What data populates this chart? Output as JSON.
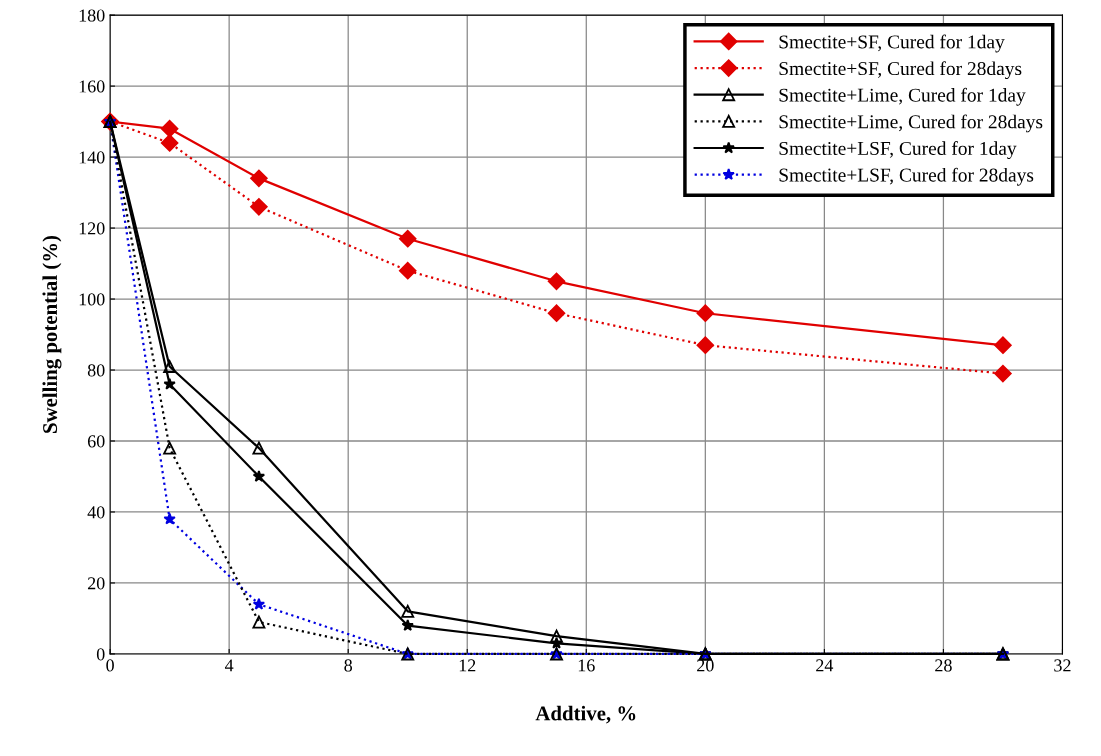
{
  "chart_data": {
    "type": "line",
    "xlabel": "Addtive, %",
    "ylabel": "Swelling potential (%)",
    "x": [
      0,
      2,
      5,
      10,
      15,
      20,
      30
    ],
    "xlim": [
      0,
      32
    ],
    "xticks": [
      0,
      4,
      8,
      12,
      16,
      20,
      24,
      28,
      32
    ],
    "ylim": [
      0,
      180
    ],
    "yticks": [
      0,
      20,
      40,
      60,
      80,
      100,
      120,
      140,
      160,
      180
    ],
    "grid": true,
    "legend": "top right",
    "series": [
      {
        "name": "Smectite+SF, Cured for 1day",
        "color": "#e00000",
        "marker": "diamond",
        "line_style": "solid",
        "values": [
          150,
          148,
          134,
          117,
          105,
          96,
          87
        ]
      },
      {
        "name": "Smectite+SF, Cured for 28days",
        "color": "#e00000",
        "marker": "diamond",
        "line_style": "dotted",
        "values": [
          150,
          144,
          126,
          108,
          96,
          87,
          79
        ]
      },
      {
        "name": "Smectite+Lime, Cured for 1day",
        "color": "#000000",
        "marker": "triangle",
        "line_style": "solid",
        "values": [
          150,
          81,
          58,
          12,
          5,
          0,
          0
        ]
      },
      {
        "name": "Smectite+Lime, Cured for 28days",
        "color": "#000000",
        "marker": "triangle",
        "line_style": "dotted",
        "values": [
          150,
          58,
          9,
          0,
          0,
          0,
          0
        ]
      },
      {
        "name": "Smectite+LSF, Cured for 1day",
        "color": "#000000",
        "marker": "star",
        "line_style": "solid",
        "values": [
          150,
          76,
          50,
          8,
          3,
          0,
          0
        ]
      },
      {
        "name": "Smectite+LSF, Cured for 28days",
        "color": "#0000e0",
        "marker": "star",
        "line_style": "dotted",
        "values": [
          150,
          38,
          14,
          0,
          0,
          0,
          0
        ]
      }
    ]
  }
}
